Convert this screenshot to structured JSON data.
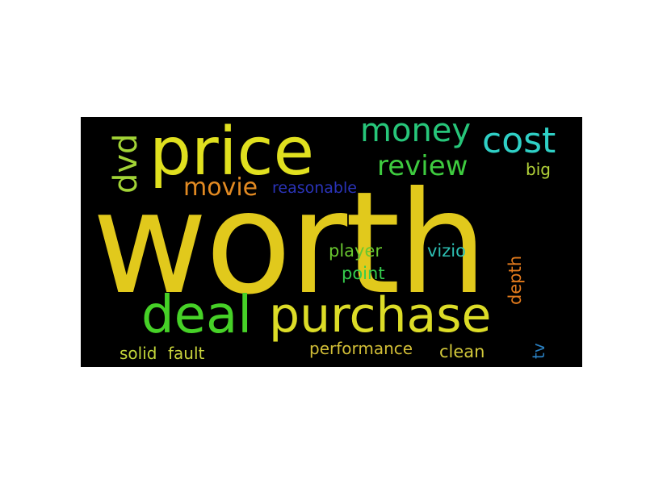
{
  "wordcloud": {
    "background": "#000000",
    "words": [
      {
        "id": "worth",
        "text": "worth",
        "color": "#e1c91c"
      },
      {
        "id": "price",
        "text": "price",
        "color": "#e0e01f"
      },
      {
        "id": "purchase",
        "text": "purchase",
        "color": "#dcdc27"
      },
      {
        "id": "deal",
        "text": "deal",
        "color": "#46d127"
      },
      {
        "id": "money",
        "text": "money",
        "color": "#27c67a"
      },
      {
        "id": "cost",
        "text": "cost",
        "color": "#2fd0c6"
      },
      {
        "id": "dvd",
        "text": "dvd",
        "color": "#a2d336"
      },
      {
        "id": "review",
        "text": "review",
        "color": "#3ecb3f"
      },
      {
        "id": "movie",
        "text": "movie",
        "color": "#e28a22"
      },
      {
        "id": "reasonable",
        "text": "reasonable",
        "color": "#2a33b8"
      },
      {
        "id": "big",
        "text": "big",
        "color": "#b4d43a"
      },
      {
        "id": "player",
        "text": "player",
        "color": "#69c72f"
      },
      {
        "id": "vizio",
        "text": "vizio",
        "color": "#2dbfb3"
      },
      {
        "id": "point",
        "text": "point",
        "color": "#35cc4d"
      },
      {
        "id": "depth",
        "text": "depth",
        "color": "#e27a1c"
      },
      {
        "id": "solid",
        "text": "solid",
        "color": "#c1d53a"
      },
      {
        "id": "fault",
        "text": "fault",
        "color": "#c9d33c"
      },
      {
        "id": "performance",
        "text": "performance",
        "color": "#d3bf37"
      },
      {
        "id": "clean",
        "text": "clean",
        "color": "#d2c83a"
      },
      {
        "id": "tv",
        "text": "tv",
        "color": "#2a7fc0"
      }
    ]
  }
}
